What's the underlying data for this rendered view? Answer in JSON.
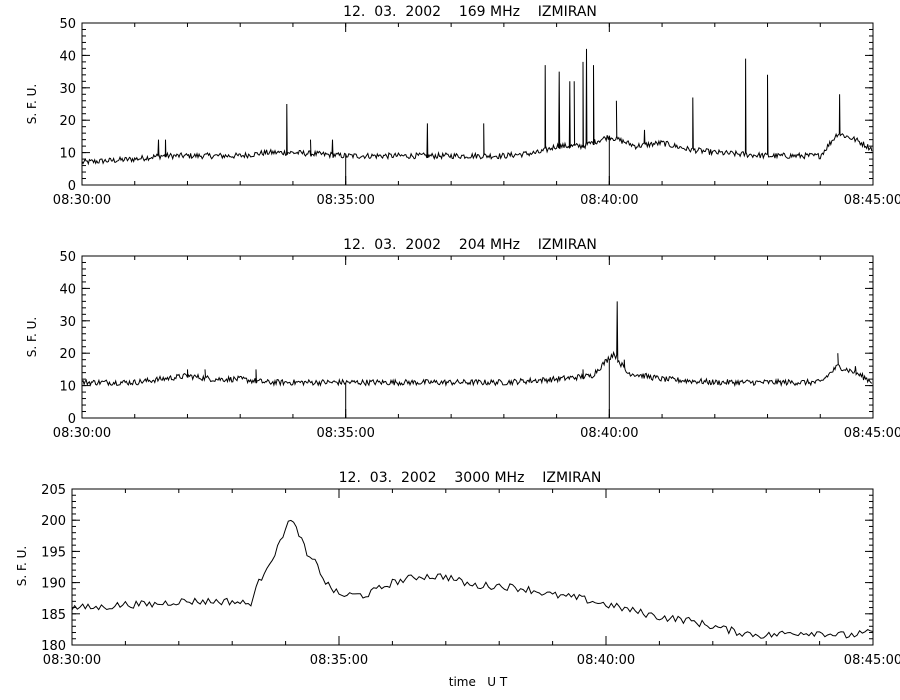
{
  "chart_data": [
    {
      "type": "line",
      "title": "12.  03.  2002    169 MHz    IZMIRAN",
      "ylabel": "S. F. U.",
      "xlabel": "",
      "ylim": [
        0,
        50
      ],
      "yticks": [
        0,
        10,
        20,
        30,
        40,
        50
      ],
      "xlim": [
        "08:30:00",
        "08:45:00"
      ],
      "xticks": [
        "08:30:00",
        "08:35:00",
        "08:40:00",
        "08:45:00"
      ],
      "baseline": 8,
      "series": [
        {
          "values": [
            [
              "08:30:00",
              7
            ],
            [
              "08:31:00",
              8
            ],
            [
              "08:31:30",
              9
            ],
            [
              "08:32:00",
              9
            ],
            [
              "08:33:00",
              9
            ],
            [
              "08:33:30",
              10
            ],
            [
              "08:34:00",
              10
            ],
            [
              "08:35:00",
              9
            ],
            [
              "08:36:00",
              9
            ],
            [
              "08:37:00",
              9
            ],
            [
              "08:38:00",
              9
            ],
            [
              "08:38:40",
              10
            ],
            [
              "08:39:00",
              12
            ],
            [
              "08:39:30",
              12
            ],
            [
              "08:40:00",
              15
            ],
            [
              "08:40:30",
              12
            ],
            [
              "08:41:00",
              13
            ],
            [
              "08:41:30",
              11
            ],
            [
              "08:42:00",
              10
            ],
            [
              "08:43:00",
              9
            ],
            [
              "08:44:00",
              9
            ],
            [
              "08:44:20",
              16
            ],
            [
              "08:44:40",
              14
            ],
            [
              "08:45:00",
              11
            ]
          ],
          "spikes": [
            [
              "08:31:27",
              14
            ],
            [
              "08:31:35",
              14
            ],
            [
              "08:33:53",
              25
            ],
            [
              "08:34:20",
              14
            ],
            [
              "08:34:45",
              14
            ],
            [
              "08:36:33",
              19
            ],
            [
              "08:37:37",
              19
            ],
            [
              "08:38:47",
              37
            ],
            [
              "08:39:03",
              35
            ],
            [
              "08:39:15",
              32
            ],
            [
              "08:39:20",
              32
            ],
            [
              "08:39:30",
              38
            ],
            [
              "08:39:34",
              42
            ],
            [
              "08:39:42",
              37
            ],
            [
              "08:40:08",
              26
            ],
            [
              "08:40:40",
              17
            ],
            [
              "08:41:35",
              27
            ],
            [
              "08:42:35",
              39
            ],
            [
              "08:43:00",
              34
            ],
            [
              "08:44:22",
              28
            ]
          ],
          "dips": [
            "08:35:00",
            "08:40:00",
            "08:45:00"
          ]
        }
      ]
    },
    {
      "type": "line",
      "title": "12.  03.  2002    204 MHz    IZMIRAN",
      "ylabel": "S. F. U.",
      "xlabel": "",
      "ylim": [
        0,
        50
      ],
      "yticks": [
        0,
        10,
        20,
        30,
        40,
        50
      ],
      "xlim": [
        "08:30:00",
        "08:45:00"
      ],
      "xticks": [
        "08:30:00",
        "08:35:00",
        "08:40:00",
        "08:45:00"
      ],
      "baseline": 11,
      "series": [
        {
          "values": [
            [
              "08:30:00",
              11
            ],
            [
              "08:31:00",
              11
            ],
            [
              "08:32:00",
              13
            ],
            [
              "08:32:30",
              12
            ],
            [
              "08:33:00",
              12
            ],
            [
              "08:33:30",
              11
            ],
            [
              "08:34:00",
              11
            ],
            [
              "08:35:00",
              11
            ],
            [
              "08:36:00",
              11
            ],
            [
              "08:37:00",
              11
            ],
            [
              "08:38:00",
              11
            ],
            [
              "08:39:00",
              12
            ],
            [
              "08:39:40",
              13
            ],
            [
              "08:40:05",
              20
            ],
            [
              "08:40:20",
              14
            ],
            [
              "08:41:00",
              12
            ],
            [
              "08:42:00",
              11
            ],
            [
              "08:43:00",
              11
            ],
            [
              "08:44:00",
              11
            ],
            [
              "08:44:20",
              16
            ],
            [
              "08:44:40",
              14
            ],
            [
              "08:45:00",
              11
            ]
          ],
          "spikes": [
            [
              "08:32:00",
              15
            ],
            [
              "08:32:20",
              15
            ],
            [
              "08:33:18",
              15
            ],
            [
              "08:39:30",
              15
            ],
            [
              "08:40:09",
              36
            ],
            [
              "08:40:17",
              18
            ],
            [
              "08:44:20",
              20
            ],
            [
              "08:44:40",
              16
            ]
          ],
          "dips": [
            "08:35:00",
            "08:40:00",
            "08:45:00"
          ]
        }
      ]
    },
    {
      "type": "line",
      "title": "12.  03.  2002    3000 MHz    IZMIRAN",
      "ylabel": "S. F. U.",
      "xlabel": "time   U T",
      "ylim": [
        180,
        205
      ],
      "yticks": [
        180,
        185,
        190,
        195,
        200,
        205
      ],
      "xlim": [
        "08:30:00",
        "08:45:00"
      ],
      "xticks": [
        "08:30:00",
        "08:35:00",
        "08:40:00",
        "08:45:00"
      ],
      "series": [
        {
          "values": [
            [
              "08:30:00",
              186
            ],
            [
              "08:30:30",
              186
            ],
            [
              "08:31:00",
              186.5
            ],
            [
              "08:31:30",
              186.5
            ],
            [
              "08:32:00",
              187
            ],
            [
              "08:32:30",
              187
            ],
            [
              "08:33:00",
              187
            ],
            [
              "08:33:20",
              186.5
            ],
            [
              "08:33:30",
              190
            ],
            [
              "08:33:40",
              193
            ],
            [
              "08:33:50",
              195
            ],
            [
              "08:34:00",
              199
            ],
            [
              "08:34:05",
              200
            ],
            [
              "08:34:15",
              198
            ],
            [
              "08:34:25",
              194
            ],
            [
              "08:34:35",
              193
            ],
            [
              "08:34:45",
              190
            ],
            [
              "08:35:00",
              188
            ],
            [
              "08:35:30",
              188
            ],
            [
              "08:36:00",
              190
            ],
            [
              "08:36:30",
              191
            ],
            [
              "08:37:00",
              191
            ],
            [
              "08:37:30",
              189.5
            ],
            [
              "08:38:00",
              189.5
            ],
            [
              "08:38:30",
              189
            ],
            [
              "08:39:00",
              188
            ],
            [
              "08:39:30",
              187.5
            ],
            [
              "08:40:00",
              186.5
            ],
            [
              "08:40:30",
              185.5
            ],
            [
              "08:41:00",
              184.5
            ],
            [
              "08:41:30",
              184
            ],
            [
              "08:42:00",
              183
            ],
            [
              "08:42:30",
              182
            ],
            [
              "08:43:00",
              181.5
            ],
            [
              "08:43:30",
              182
            ],
            [
              "08:44:00",
              182
            ],
            [
              "08:44:30",
              181.5
            ],
            [
              "08:45:00",
              182
            ]
          ]
        }
      ]
    }
  ]
}
